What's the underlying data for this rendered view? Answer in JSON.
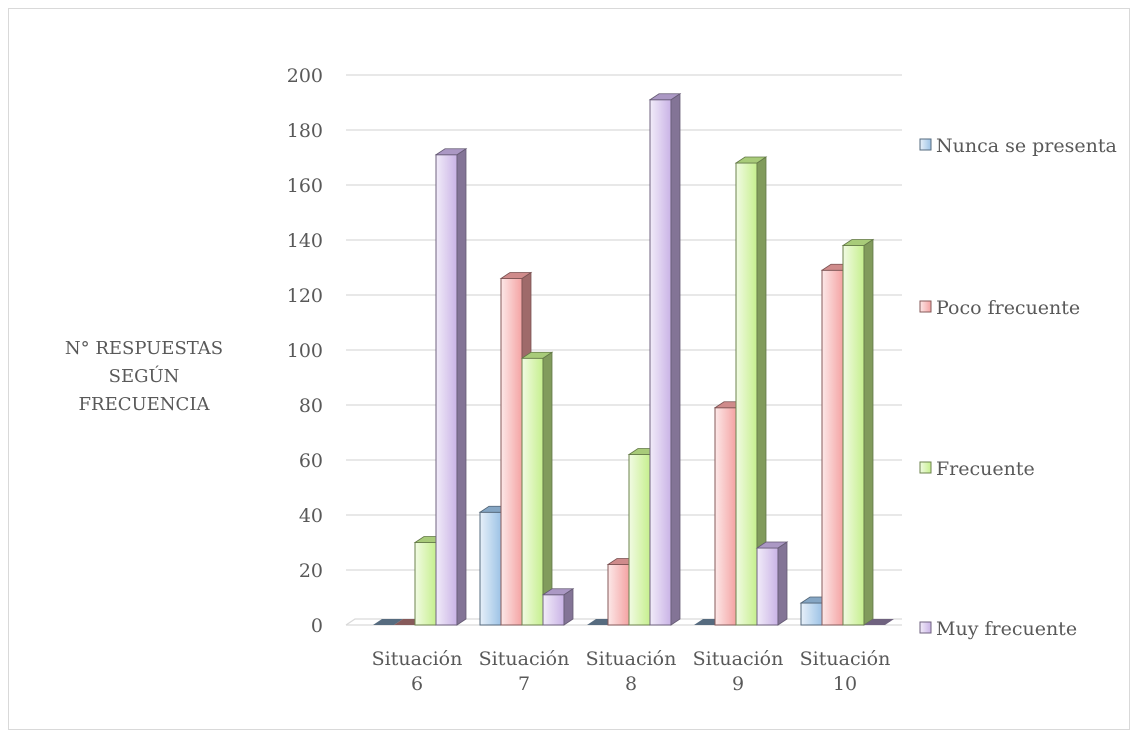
{
  "chart_data": {
    "type": "bar",
    "title": "",
    "ylabel_lines": [
      "N° RESPUESTAS",
      "SEGÚN",
      "FRECUENCIA"
    ],
    "xlabel": "",
    "categories": [
      [
        "Situación",
        "6"
      ],
      [
        "Situación",
        "7"
      ],
      [
        "Situación",
        "8"
      ],
      [
        "Situación",
        "9"
      ],
      [
        "Situación",
        "10"
      ]
    ],
    "ylim": [
      0,
      200
    ],
    "yticks": [
      0,
      20,
      40,
      60,
      80,
      100,
      120,
      140,
      160,
      180,
      200
    ],
    "grid": true,
    "legend_position": "right",
    "series": [
      {
        "name": "Nunca se presenta",
        "color": "#9dc3e6",
        "values": [
          0,
          41,
          0,
          0,
          8
        ]
      },
      {
        "name": "Poco frecuente",
        "color": "#f4a3a3",
        "values": [
          0,
          126,
          22,
          79,
          129
        ]
      },
      {
        "name": "Frecuente",
        "color": "#c6ef8e",
        "values": [
          30,
          97,
          62,
          168,
          138
        ]
      },
      {
        "name": "Muy frecuente",
        "color": "#c9b3e6",
        "values": [
          171,
          11,
          191,
          28,
          0
        ]
      }
    ]
  }
}
